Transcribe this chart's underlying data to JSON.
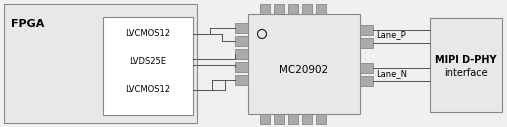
{
  "bg_color": "#f0f0f0",
  "white": "#ffffff",
  "gray_pad": "#aaaaaa",
  "light_gray_fill": "#e8e8e8",
  "chip_fill": "#f2f2f2",
  "border_color": "#888888",
  "line_color": "#555555",
  "fpga_label": "FPGA",
  "mipi_line1": "MIPI D-PHY",
  "mipi_line2": "interface",
  "chip_label": "MC20902",
  "inner_labels": [
    "LVCMOS12",
    "LVDS25E",
    "LVCMOS12"
  ],
  "lane_p": "Lane_P",
  "lane_n": "Lane_N",
  "font_fpga": 8,
  "font_inner": 6,
  "font_chip": 7.5,
  "font_mipi": 7,
  "font_lane": 6
}
